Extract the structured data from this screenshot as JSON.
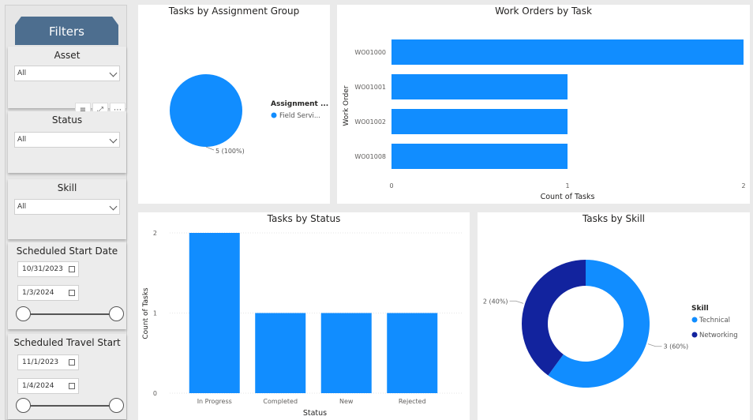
{
  "filters": {
    "title": "Filters",
    "asset": {
      "title": "Asset",
      "value": "All"
    },
    "status": {
      "title": "Status",
      "value": "All"
    },
    "skill": {
      "title": "Skill",
      "value": "All"
    },
    "scheduled_start": {
      "title": "Scheduled Start Date",
      "from": "10/31/2023",
      "to": "1/3/2024"
    },
    "scheduled_travel": {
      "title": "Scheduled Travel Start",
      "from": "11/1/2023",
      "to": "1/4/2024"
    }
  },
  "icons": {
    "filter": "filter-icon",
    "focus": "focus-mode-icon",
    "more": "more-options-icon"
  },
  "colors": {
    "primary": "#118dff",
    "dark": "#12239e"
  },
  "chart_data": [
    {
      "type": "pie",
      "title": "Tasks by Assignment Group",
      "legend_title": "Assignment ...",
      "legend_placement": "right",
      "slices": [
        {
          "label": "Field Servi...",
          "value": 5,
          "data_label": "5 (100%)"
        }
      ]
    },
    {
      "type": "bar",
      "orientation": "horizontal",
      "title": "Work Orders by Task",
      "categories": [
        "WO01000",
        "WO01001",
        "WO01002",
        "WO01008"
      ],
      "values": [
        2,
        1,
        1,
        1
      ],
      "xlabel": "Count of Tasks",
      "ylabel": "Work Order",
      "xlim": [
        0,
        2
      ],
      "ticks": [
        "0",
        "1",
        "2"
      ]
    },
    {
      "type": "bar",
      "title": "Tasks by Status",
      "categories": [
        "In Progress",
        "Completed",
        "New",
        "Rejected"
      ],
      "values": [
        2,
        1,
        1,
        1
      ],
      "xlabel": "Status",
      "ylabel": "Count of Tasks",
      "ylim": [
        0,
        2
      ],
      "ticks": [
        "0",
        "1",
        "2"
      ]
    },
    {
      "type": "pie",
      "donut": true,
      "title": "Tasks by Skill",
      "legend_title": "Skill",
      "legend_placement": "right",
      "slices": [
        {
          "label": "Technical",
          "value": 3,
          "data_label": "3 (60%)"
        },
        {
          "label": "Networking",
          "value": 2,
          "data_label": "2 (40%)"
        }
      ]
    }
  ]
}
